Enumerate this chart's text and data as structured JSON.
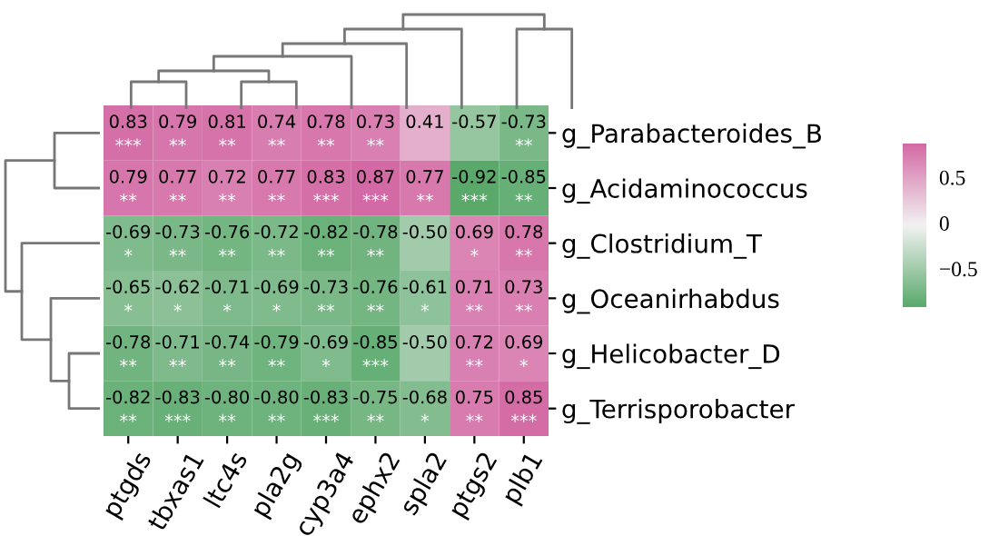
{
  "chart_data": {
    "type": "heatmap",
    "categories": [
      "ptgds",
      "tbxas1",
      "ltc4s",
      "pla2g",
      "cyp3a4",
      "ephx2",
      "spla2",
      "ptgs2",
      "plb1"
    ],
    "y_categories": [
      "g_Parabacteroides_B",
      "g_Acidaminococcus",
      "g_Clostridium_T",
      "g_Oceanirhabdus",
      "g_Helicobacter_D",
      "g_Terrisporobacter"
    ],
    "cells": [
      [
        0.83,
        0.79,
        0.81,
        0.74,
        0.78,
        0.73,
        0.41,
        -0.57,
        -0.73
      ],
      [
        0.79,
        0.77,
        0.72,
        0.77,
        0.83,
        0.87,
        0.77,
        -0.92,
        -0.85
      ],
      [
        -0.69,
        -0.73,
        -0.76,
        -0.72,
        -0.82,
        -0.78,
        -0.5,
        0.69,
        0.78
      ],
      [
        -0.65,
        -0.62,
        -0.71,
        -0.69,
        -0.73,
        -0.76,
        -0.61,
        0.71,
        0.73
      ],
      [
        -0.78,
        -0.71,
        -0.74,
        -0.79,
        -0.69,
        -0.85,
        -0.5,
        0.72,
        0.69
      ],
      [
        -0.82,
        -0.83,
        -0.8,
        -0.8,
        -0.83,
        -0.75,
        -0.68,
        0.75,
        0.85
      ]
    ],
    "cell_labels": [
      [
        "0.83\n***",
        "0.79\n**",
        "0.81\n**",
        "0.74\n**",
        "0.78\n**",
        "0.73\n**",
        "0.41",
        "-0.57",
        "-0.73\n**"
      ],
      [
        "0.79\n**",
        "0.77\n**",
        "0.72\n**",
        "0.77\n**",
        "0.83\n***",
        "0.87\n***",
        "0.77\n**",
        "-0.92\n***",
        "-0.85\n**"
      ],
      [
        "-0.69\n*",
        "-0.73\n**",
        "-0.76\n**",
        "-0.72\n**",
        "-0.82\n**",
        "-0.78\n**",
        "-0.50",
        "0.69\n*",
        "0.78\n**"
      ],
      [
        "-0.65\n*",
        "-0.62\n*",
        "-0.71\n*",
        "-0.69\n*",
        "-0.73\n**",
        "-0.76\n**",
        "-0.61\n*",
        "0.71\n**",
        "0.73\n**"
      ],
      [
        "-0.78\n**",
        "-0.71\n**",
        "-0.74\n**",
        "-0.79\n**",
        "-0.69\n*",
        "-0.85\n***",
        "-0.50",
        "0.72\n**",
        "0.69\n*"
      ],
      [
        "-0.82\n**",
        "-0.83\n***",
        "-0.80\n**",
        "-0.80\n**",
        "-0.83\n***",
        "-0.75\n**",
        "-0.68\n*",
        "0.75\n**",
        "0.85\n***"
      ]
    ],
    "colors": [
      "#5aa96b",
      "#f2f2f2",
      "#d46aa5"
    ],
    "clim": [
      -0.92,
      0.87
    ],
    "cticks": [
      {
        "value": 0.5,
        "label": "0.5"
      },
      {
        "value": 0,
        "label": "0"
      },
      {
        "value": -0.5,
        "label": "−0.5"
      }
    ]
  }
}
